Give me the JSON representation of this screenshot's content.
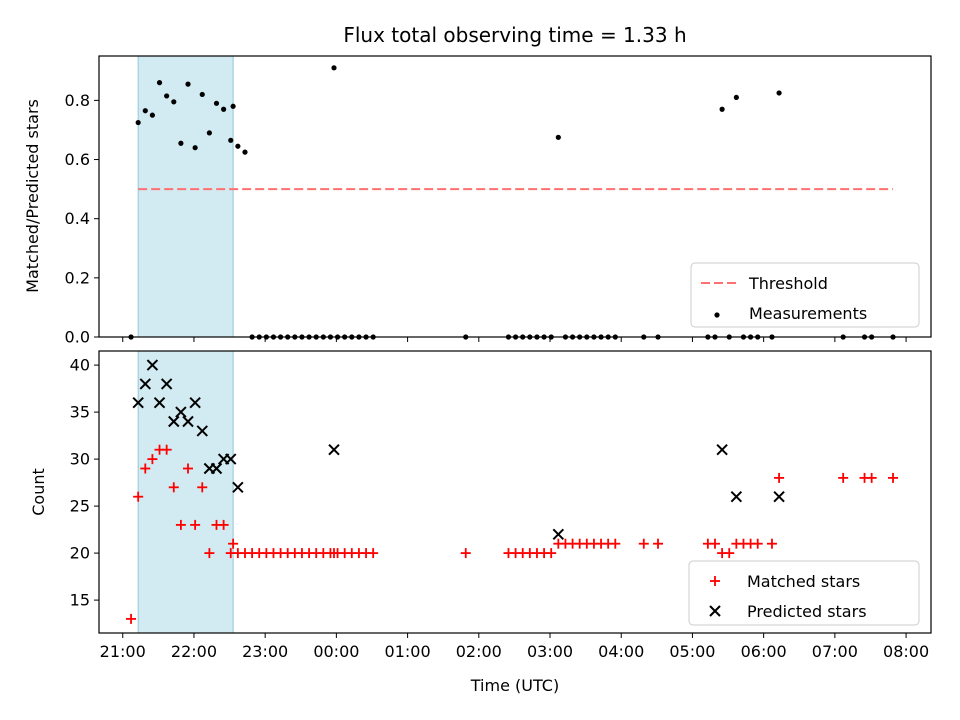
{
  "chart_data": [
    {
      "type": "scatter",
      "title": "Flux total observing time = 1.33 h",
      "xlabel": "",
      "ylabel": "Matched/Predicted stars",
      "ylim": [
        0,
        0.95
      ],
      "yticks": [
        0.0,
        0.2,
        0.4,
        0.6,
        0.8
      ],
      "ytick_labels": [
        "0.0",
        "0.2",
        "0.4",
        "0.6",
        "0.8"
      ],
      "xlim": [
        "20:40",
        "08:21"
      ],
      "highlight_span": {
        "x0": "21:13",
        "x1": "22:33",
        "color": "#add8e6"
      },
      "threshold": {
        "name": "Threshold",
        "value": 0.5,
        "x0": "21:13",
        "x1": "07:49",
        "color": "#ff7070",
        "style": "dashed"
      },
      "series": [
        {
          "name": "Measurements",
          "color": "#000000",
          "marker": "dot",
          "x": [
            "21:07",
            "21:13",
            "21:19",
            "21:25",
            "21:31",
            "21:37",
            "21:43",
            "21:49",
            "21:55",
            "22:01",
            "22:07",
            "22:13",
            "22:19",
            "22:25",
            "22:31",
            "22:33",
            "22:37",
            "22:43",
            "22:49",
            "22:55",
            "23:01",
            "23:07",
            "23:13",
            "23:19",
            "23:25",
            "23:31",
            "23:37",
            "23:43",
            "23:49",
            "23:55",
            "23:58",
            "00:01",
            "00:07",
            "00:13",
            "00:19",
            "00:25",
            "00:31",
            "01:49",
            "02:25",
            "02:31",
            "02:37",
            "02:43",
            "02:49",
            "02:55",
            "03:01",
            "03:07",
            "03:13",
            "03:19",
            "03:25",
            "03:31",
            "03:37",
            "03:43",
            "03:49",
            "03:55",
            "04:19",
            "04:31",
            "05:13",
            "05:19",
            "05:25",
            "05:31",
            "05:37",
            "05:43",
            "05:49",
            "05:55",
            "06:07",
            "06:13",
            "07:07",
            "07:25",
            "07:31",
            "07:49"
          ],
          "y": [
            0.0,
            0.725,
            0.765,
            0.75,
            0.86,
            0.815,
            0.795,
            0.655,
            0.855,
            0.64,
            0.82,
            0.69,
            0.79,
            0.77,
            0.665,
            0.78,
            0.645,
            0.625,
            0.0,
            0.0,
            0.0,
            0.0,
            0.0,
            0.0,
            0.0,
            0.0,
            0.0,
            0.0,
            0.0,
            0.0,
            0.91,
            0.0,
            0.0,
            0.0,
            0.0,
            0.0,
            0.0,
            0.0,
            0.0,
            0.0,
            0.0,
            0.0,
            0.0,
            0.0,
            0.0,
            0.675,
            0.0,
            0.0,
            0.0,
            0.0,
            0.0,
            0.0,
            0.0,
            0.0,
            0.0,
            0.0,
            0.0,
            0.0,
            0.77,
            0.0,
            0.81,
            0.0,
            0.0,
            0.0,
            0.0,
            0.825,
            0.0,
            0.0,
            0.0,
            0.0
          ]
        }
      ],
      "legend": {
        "placement": "lower-right",
        "entries": [
          "Threshold",
          "Measurements"
        ]
      }
    },
    {
      "type": "scatter",
      "title": "",
      "xlabel": "Time (UTC)",
      "ylabel": "Count",
      "ylim": [
        11.5,
        41.5
      ],
      "yticks": [
        15,
        20,
        25,
        30,
        35,
        40
      ],
      "ytick_labels": [
        "15",
        "20",
        "25",
        "30",
        "35",
        "40"
      ],
      "xlim": [
        "20:40",
        "08:21"
      ],
      "xticks": [
        "21:00",
        "22:00",
        "23:00",
        "00:00",
        "01:00",
        "02:00",
        "03:00",
        "04:00",
        "05:00",
        "06:00",
        "07:00",
        "08:00"
      ],
      "highlight_span": {
        "x0": "21:13",
        "x1": "22:33",
        "color": "#add8e6"
      },
      "series": [
        {
          "name": "Matched stars",
          "color": "#ff0000",
          "marker": "plus",
          "x": [
            "21:07",
            "21:13",
            "21:19",
            "21:25",
            "21:31",
            "21:37",
            "21:43",
            "21:49",
            "21:55",
            "22:01",
            "22:07",
            "22:13",
            "22:19",
            "22:25",
            "22:31",
            "22:33",
            "22:37",
            "22:43",
            "22:49",
            "22:55",
            "23:01",
            "23:07",
            "23:13",
            "23:19",
            "23:25",
            "23:31",
            "23:37",
            "23:43",
            "23:49",
            "23:55",
            "23:58",
            "00:01",
            "00:07",
            "00:13",
            "00:19",
            "00:25",
            "00:31",
            "01:49",
            "02:25",
            "02:31",
            "02:37",
            "02:43",
            "02:49",
            "02:55",
            "03:01",
            "03:07",
            "03:13",
            "03:19",
            "03:25",
            "03:31",
            "03:37",
            "03:43",
            "03:49",
            "03:55",
            "04:19",
            "04:31",
            "05:13",
            "05:19",
            "05:25",
            "05:31",
            "05:37",
            "05:43",
            "05:49",
            "05:55",
            "06:07",
            "06:13",
            "07:07",
            "07:25",
            "07:31",
            "07:49"
          ],
          "y": [
            13,
            26,
            29,
            30,
            31,
            31,
            27,
            23,
            29,
            23,
            27,
            20,
            23,
            23,
            20,
            21,
            20,
            20,
            20,
            20,
            20,
            20,
            20,
            20,
            20,
            20,
            20,
            20,
            20,
            20,
            20,
            20,
            20,
            20,
            20,
            20,
            20,
            20,
            20,
            20,
            20,
            20,
            20,
            20,
            20,
            21,
            21,
            21,
            21,
            21,
            21,
            21,
            21,
            21,
            21,
            21,
            21,
            21,
            20,
            20,
            21,
            21,
            21,
            21,
            21,
            28,
            28,
            28,
            28,
            28
          ]
        },
        {
          "name": "Predicted stars",
          "color": "#000000",
          "marker": "x",
          "x": [
            "21:13",
            "21:19",
            "21:25",
            "21:31",
            "21:37",
            "21:43",
            "21:49",
            "21:55",
            "22:01",
            "22:07",
            "22:13",
            "22:19",
            "22:25",
            "22:31",
            "22:37",
            "23:58",
            "03:07",
            "05:25",
            "05:37",
            "06:13"
          ],
          "y": [
            36,
            38,
            40,
            36,
            38,
            34,
            35,
            34,
            36,
            33,
            29,
            29,
            30,
            30,
            27,
            31,
            22,
            31,
            26,
            26
          ]
        }
      ],
      "legend": {
        "placement": "lower-right",
        "entries": [
          "Matched stars",
          "Predicted stars"
        ]
      }
    }
  ]
}
